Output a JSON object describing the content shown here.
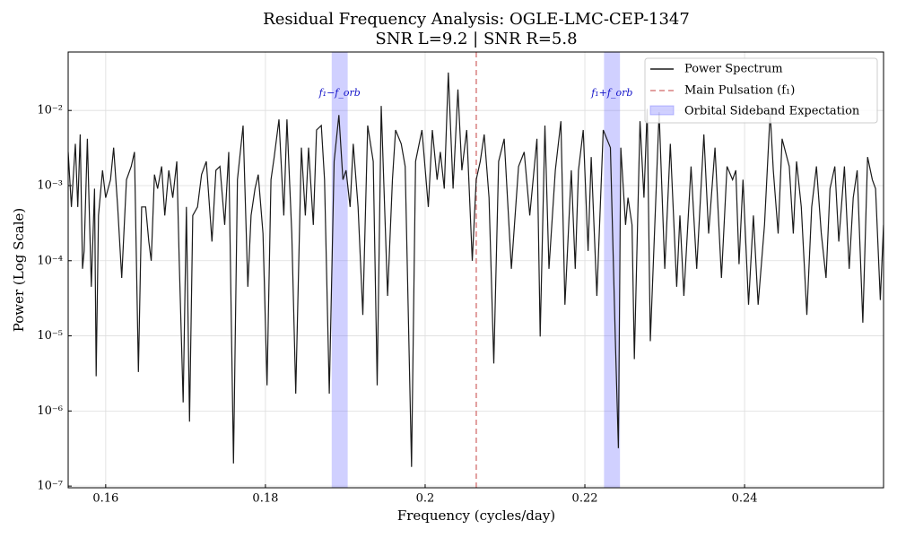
{
  "chart_data": {
    "type": "line",
    "title": "Residual Frequency Analysis: OGLE-LMC-CEP-1347",
    "subtitle": "SNR L=9.2 | SNR R=5.8",
    "x_label": "Frequency (cycles/day)",
    "y_label": "Power (Log Scale)",
    "log_y": true,
    "grid": true,
    "legend": "upper right",
    "xlim": [
      0.1553,
      0.2574
    ],
    "ylim": [
      9.5e-08,
      0.06
    ],
    "xticks": [
      0.16,
      0.18,
      0.2,
      0.22,
      0.24
    ],
    "yticks": [
      {
        "value": 1e-07,
        "label": "10⁻⁷"
      },
      {
        "value": 1e-06,
        "label": "10⁻⁶"
      },
      {
        "value": 1e-05,
        "label": "10⁻⁵"
      },
      {
        "value": 0.0001,
        "label": "10⁻⁴"
      },
      {
        "value": 0.001,
        "label": "10⁻³"
      },
      {
        "value": 0.01,
        "label": "10⁻²"
      }
    ],
    "series": [
      {
        "name": "Power Spectrum",
        "color": "#1a1a1a",
        "x": [
          0.1553,
          0.1557,
          0.1562,
          0.1565,
          0.1568,
          0.1571,
          0.1573,
          0.1577,
          0.1582,
          0.1586,
          0.1588,
          0.1591,
          0.1596,
          0.16,
          0.1606,
          0.161,
          0.1615,
          0.162,
          0.1626,
          0.1632,
          0.1636,
          0.1641,
          0.1645,
          0.165,
          0.1654,
          0.1657,
          0.1661,
          0.1665,
          0.167,
          0.1674,
          0.1679,
          0.1684,
          0.1689,
          0.1692,
          0.1697,
          0.1701,
          0.1705,
          0.1709,
          0.1715,
          0.172,
          0.1726,
          0.1733,
          0.1738,
          0.1743,
          0.1749,
          0.1754,
          0.176,
          0.1765,
          0.1772,
          0.1778,
          0.1782,
          0.1787,
          0.1791,
          0.1797,
          0.1802,
          0.1807,
          0.1811,
          0.1817,
          0.1823,
          0.1827,
          0.1833,
          0.1838,
          0.1845,
          0.185,
          0.1854,
          0.186,
          0.1864,
          0.187,
          0.1874,
          0.188,
          0.1886,
          0.1892,
          0.1897,
          0.1901,
          0.1906,
          0.191,
          0.1916,
          0.1922,
          0.1928,
          0.1935,
          0.194,
          0.1945,
          0.1953,
          0.1959,
          0.1963,
          0.197,
          0.1975,
          0.1983,
          0.1988,
          0.1996,
          0.2004,
          0.2009,
          0.2015,
          0.2019,
          0.2024,
          0.2029,
          0.2035,
          0.2041,
          0.2046,
          0.2052,
          0.2059,
          0.2064,
          0.2069,
          0.2074,
          0.208,
          0.2086,
          0.2092,
          0.2099,
          0.2108,
          0.2117,
          0.2124,
          0.2131,
          0.214,
          0.2144,
          0.215,
          0.2155,
          0.2163,
          0.217,
          0.2175,
          0.2183,
          0.2188,
          0.2192,
          0.2198,
          0.2204,
          0.2208,
          0.2215,
          0.2223,
          0.2232,
          0.2238,
          0.2242,
          0.2245,
          0.2251,
          0.2254,
          0.2259,
          0.2262,
          0.2269,
          0.2274,
          0.2278,
          0.2282,
          0.2288,
          0.2293,
          0.23,
          0.2307,
          0.2315,
          0.2319,
          0.2324,
          0.2333,
          0.234,
          0.2349,
          0.2355,
          0.2363,
          0.2371,
          0.2378,
          0.2385,
          0.2389,
          0.2393,
          0.2398,
          0.2405,
          0.2411,
          0.2417,
          0.2425,
          0.2432,
          0.2436,
          0.2442,
          0.2447,
          0.2456,
          0.2461,
          0.2465,
          0.2471,
          0.2478,
          0.2484,
          0.249,
          0.2496,
          0.2502,
          0.2507,
          0.2513,
          0.2518,
          0.2525,
          0.2531,
          0.2536,
          0.2541,
          0.2548,
          0.2554,
          0.256,
          0.2564,
          0.257,
          0.2574
        ],
        "values": [
          0.0028,
          0.00052,
          0.0036,
          0.00052,
          0.0048,
          7.8e-05,
          0.000135,
          0.0042,
          4.5e-05,
          0.00091,
          2.9e-06,
          0.0004,
          0.0016,
          0.00069,
          0.0012,
          0.0032,
          0.00052,
          5.9e-05,
          0.0012,
          0.0018,
          0.0028,
          3.3e-06,
          0.00052,
          0.00052,
          0.00018,
          0.0001,
          0.0014,
          0.00091,
          0.0018,
          0.0004,
          0.0016,
          0.00069,
          0.0021,
          0.0001,
          1.3e-06,
          0.00052,
          7.2e-07,
          0.0004,
          0.00052,
          0.0014,
          0.0021,
          0.00018,
          0.0016,
          0.0018,
          0.0003,
          0.0028,
          2e-07,
          0.0012,
          0.0063,
          4.5e-05,
          0.0004,
          0.00091,
          0.0014,
          0.00023,
          2.2e-06,
          0.0012,
          0.0024,
          0.0076,
          0.0004,
          0.0076,
          0.00023,
          1.7e-06,
          0.0032,
          0.0004,
          0.0032,
          0.0003,
          0.0055,
          0.0063,
          0.0012,
          1.7e-06,
          0.0021,
          0.0087,
          0.0012,
          0.0016,
          0.00052,
          0.0036,
          0.00052,
          1.9e-05,
          0.0063,
          0.0021,
          2.2e-06,
          0.0115,
          3.4e-05,
          0.0012,
          0.0055,
          0.0036,
          0.0018,
          1.8e-07,
          0.0021,
          0.0055,
          0.00052,
          0.0055,
          0.0012,
          0.0028,
          0.00091,
          0.032,
          0.00091,
          0.019,
          0.0016,
          0.0055,
          0.0001,
          0.0012,
          0.0021,
          0.0048,
          0.00069,
          4.3e-06,
          0.0021,
          0.0042,
          7.8e-05,
          0.0018,
          0.0028,
          0.0004,
          0.0042,
          9.8e-06,
          0.0063,
          7.8e-05,
          0.0016,
          0.0072,
          2.6e-05,
          0.0016,
          7.8e-05,
          0.0016,
          0.0055,
          0.000135,
          0.0024,
          3.4e-05,
          0.0055,
          0.0032,
          9.8e-06,
          3.2e-07,
          0.0032,
          0.0003,
          0.00069,
          0.0003,
          4.9e-06,
          0.0072,
          0.00069,
          0.0105,
          8.5e-06,
          0.0004,
          0.0095,
          7.8e-05,
          0.0036,
          4.5e-05,
          0.0004,
          3.4e-05,
          0.0018,
          7.8e-05,
          0.0048,
          0.00023,
          0.0032,
          5.9e-05,
          0.0018,
          0.0012,
          0.0016,
          9e-05,
          0.0012,
          2.6e-05,
          0.0004,
          2.6e-05,
          0.0003,
          0.0095,
          0.0016,
          0.00023,
          0.0042,
          0.0018,
          0.00023,
          0.0021,
          0.00052,
          1.9e-05,
          0.00052,
          0.0018,
          0.00023,
          5.9e-05,
          0.00091,
          0.0018,
          0.00018,
          0.0018,
          7.8e-05,
          0.00069,
          0.0016,
          1.5e-05,
          0.0024,
          0.0012,
          0.00091,
          3e-05,
          0.0003
        ]
      }
    ],
    "vline": {
      "name": "Main Pulsation (f₁)",
      "color": "#d88080",
      "x": 0.2064
    },
    "bands": {
      "name": "Orbital Sideband Expectation",
      "color": "#6464ff",
      "ranges": [
        [
          0.1883,
          0.1903
        ],
        [
          0.2224,
          0.2244
        ]
      ],
      "labels": [
        "f₁−f_orb",
        "f₁+f_orb"
      ]
    }
  }
}
